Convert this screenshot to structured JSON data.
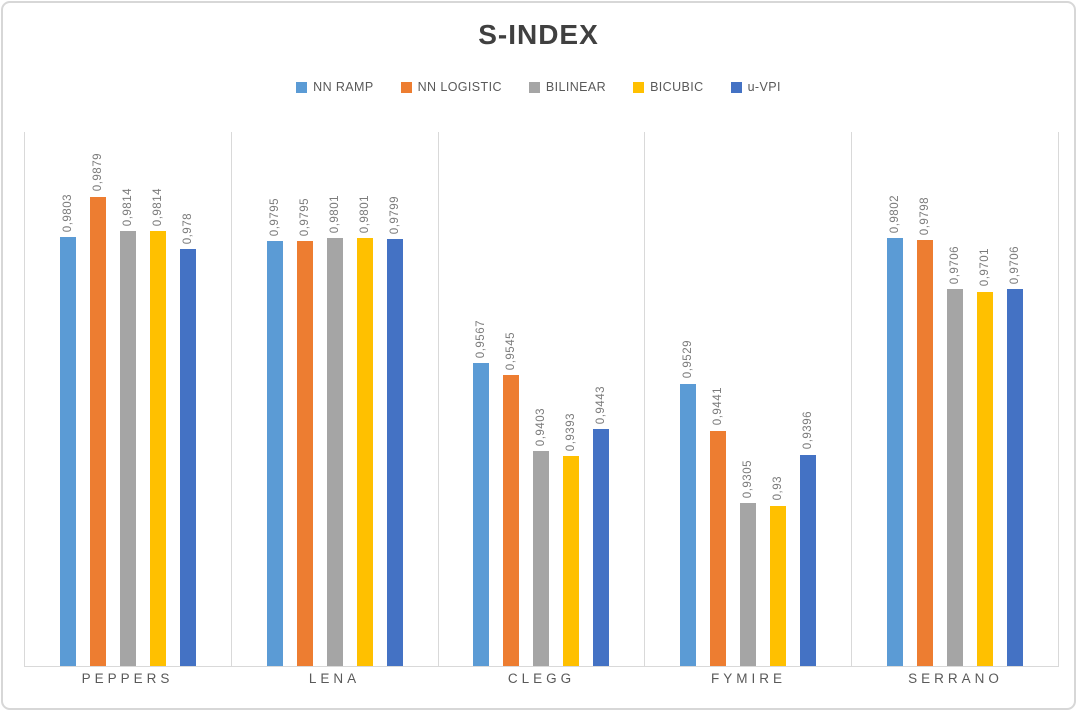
{
  "chart_data": {
    "type": "bar",
    "title": "S-INDEX",
    "categories": [
      "PEPPERS",
      "LENA",
      "CLEGG",
      "FYMIRE",
      "SERRANO"
    ],
    "series": [
      {
        "name": "NN RAMP",
        "color": "#5B9BD5",
        "values": [
          0.9803,
          0.9795,
          0.9567,
          0.9529,
          0.9802
        ],
        "labels": [
          "0,9803",
          "0,9795",
          "0,9567",
          "0,9529",
          "0,9802"
        ]
      },
      {
        "name": "NN LOGISTIC",
        "color": "#ED7D31",
        "values": [
          0.9879,
          0.9795,
          0.9545,
          0.9441,
          0.9798
        ],
        "labels": [
          "0,9879",
          "0,9795",
          "0,9545",
          "0,9441",
          "0,9798"
        ]
      },
      {
        "name": "BILINEAR",
        "color": "#A5A5A5",
        "values": [
          0.9814,
          0.9801,
          0.9403,
          0.9305,
          0.9706
        ],
        "labels": [
          "0,9814",
          "0,9801",
          "0,9403",
          "0,9305",
          "0,9706"
        ]
      },
      {
        "name": "BICUBIC",
        "color": "#FFC000",
        "values": [
          0.9814,
          0.9801,
          0.9393,
          0.93,
          0.9701
        ],
        "labels": [
          "0,9814",
          "0,9801",
          "0,9393",
          "0,93",
          "0,9701"
        ]
      },
      {
        "name": "u-VPI",
        "color": "#4472C4",
        "values": [
          0.978,
          0.9799,
          0.9443,
          0.9396,
          0.9706
        ],
        "labels": [
          "0,978",
          "0,9799",
          "0,9443",
          "0,9396",
          "0,9706"
        ]
      }
    ],
    "xlabel": "",
    "ylabel": "",
    "ylim": [
      0.9,
      1.0
    ],
    "grid": "vertical category separators only",
    "legend_position": "top",
    "decimal_separator": ",",
    "data_label_rotation": "90deg counterclockwise",
    "axis_color": "#D9D9D9",
    "title_color": "#404040",
    "label_color": "#7B7B7B",
    "category_color": "#595959"
  }
}
